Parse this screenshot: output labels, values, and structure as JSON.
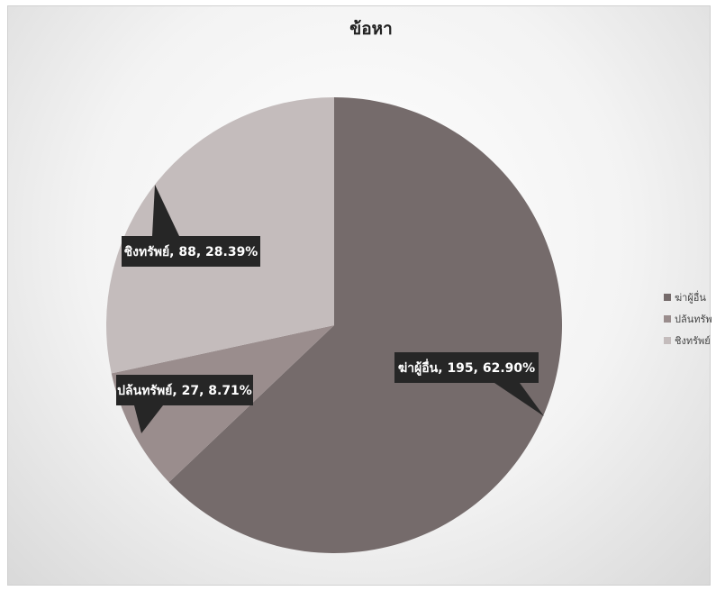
{
  "chart_data": {
    "type": "pie",
    "title": "ข้อหา",
    "categories": [
      "ฆ่าผู้อื่น",
      "ปล้นทรัพย์",
      "ชิงทรัพย์"
    ],
    "values": [
      195,
      27,
      88
    ],
    "percentages": [
      "62.90%",
      "8.71%",
      "28.39%"
    ],
    "data_labels": [
      "ฆ่าผู้อื่น, 195, 62.90%",
      "ปล้นทรัพย์, 27, 8.71%",
      "ชิงทรัพย์, 88, 28.39%"
    ],
    "colors": [
      "#756b6b",
      "#9a8d8d",
      "#c4bcbc"
    ],
    "legend": {
      "placement": "right",
      "entries": [
        "ฆ่าผู้อื่น",
        "ปล้นทรัพย์",
        "ชิงทรัพย์"
      ]
    },
    "label_background": "#262626"
  }
}
